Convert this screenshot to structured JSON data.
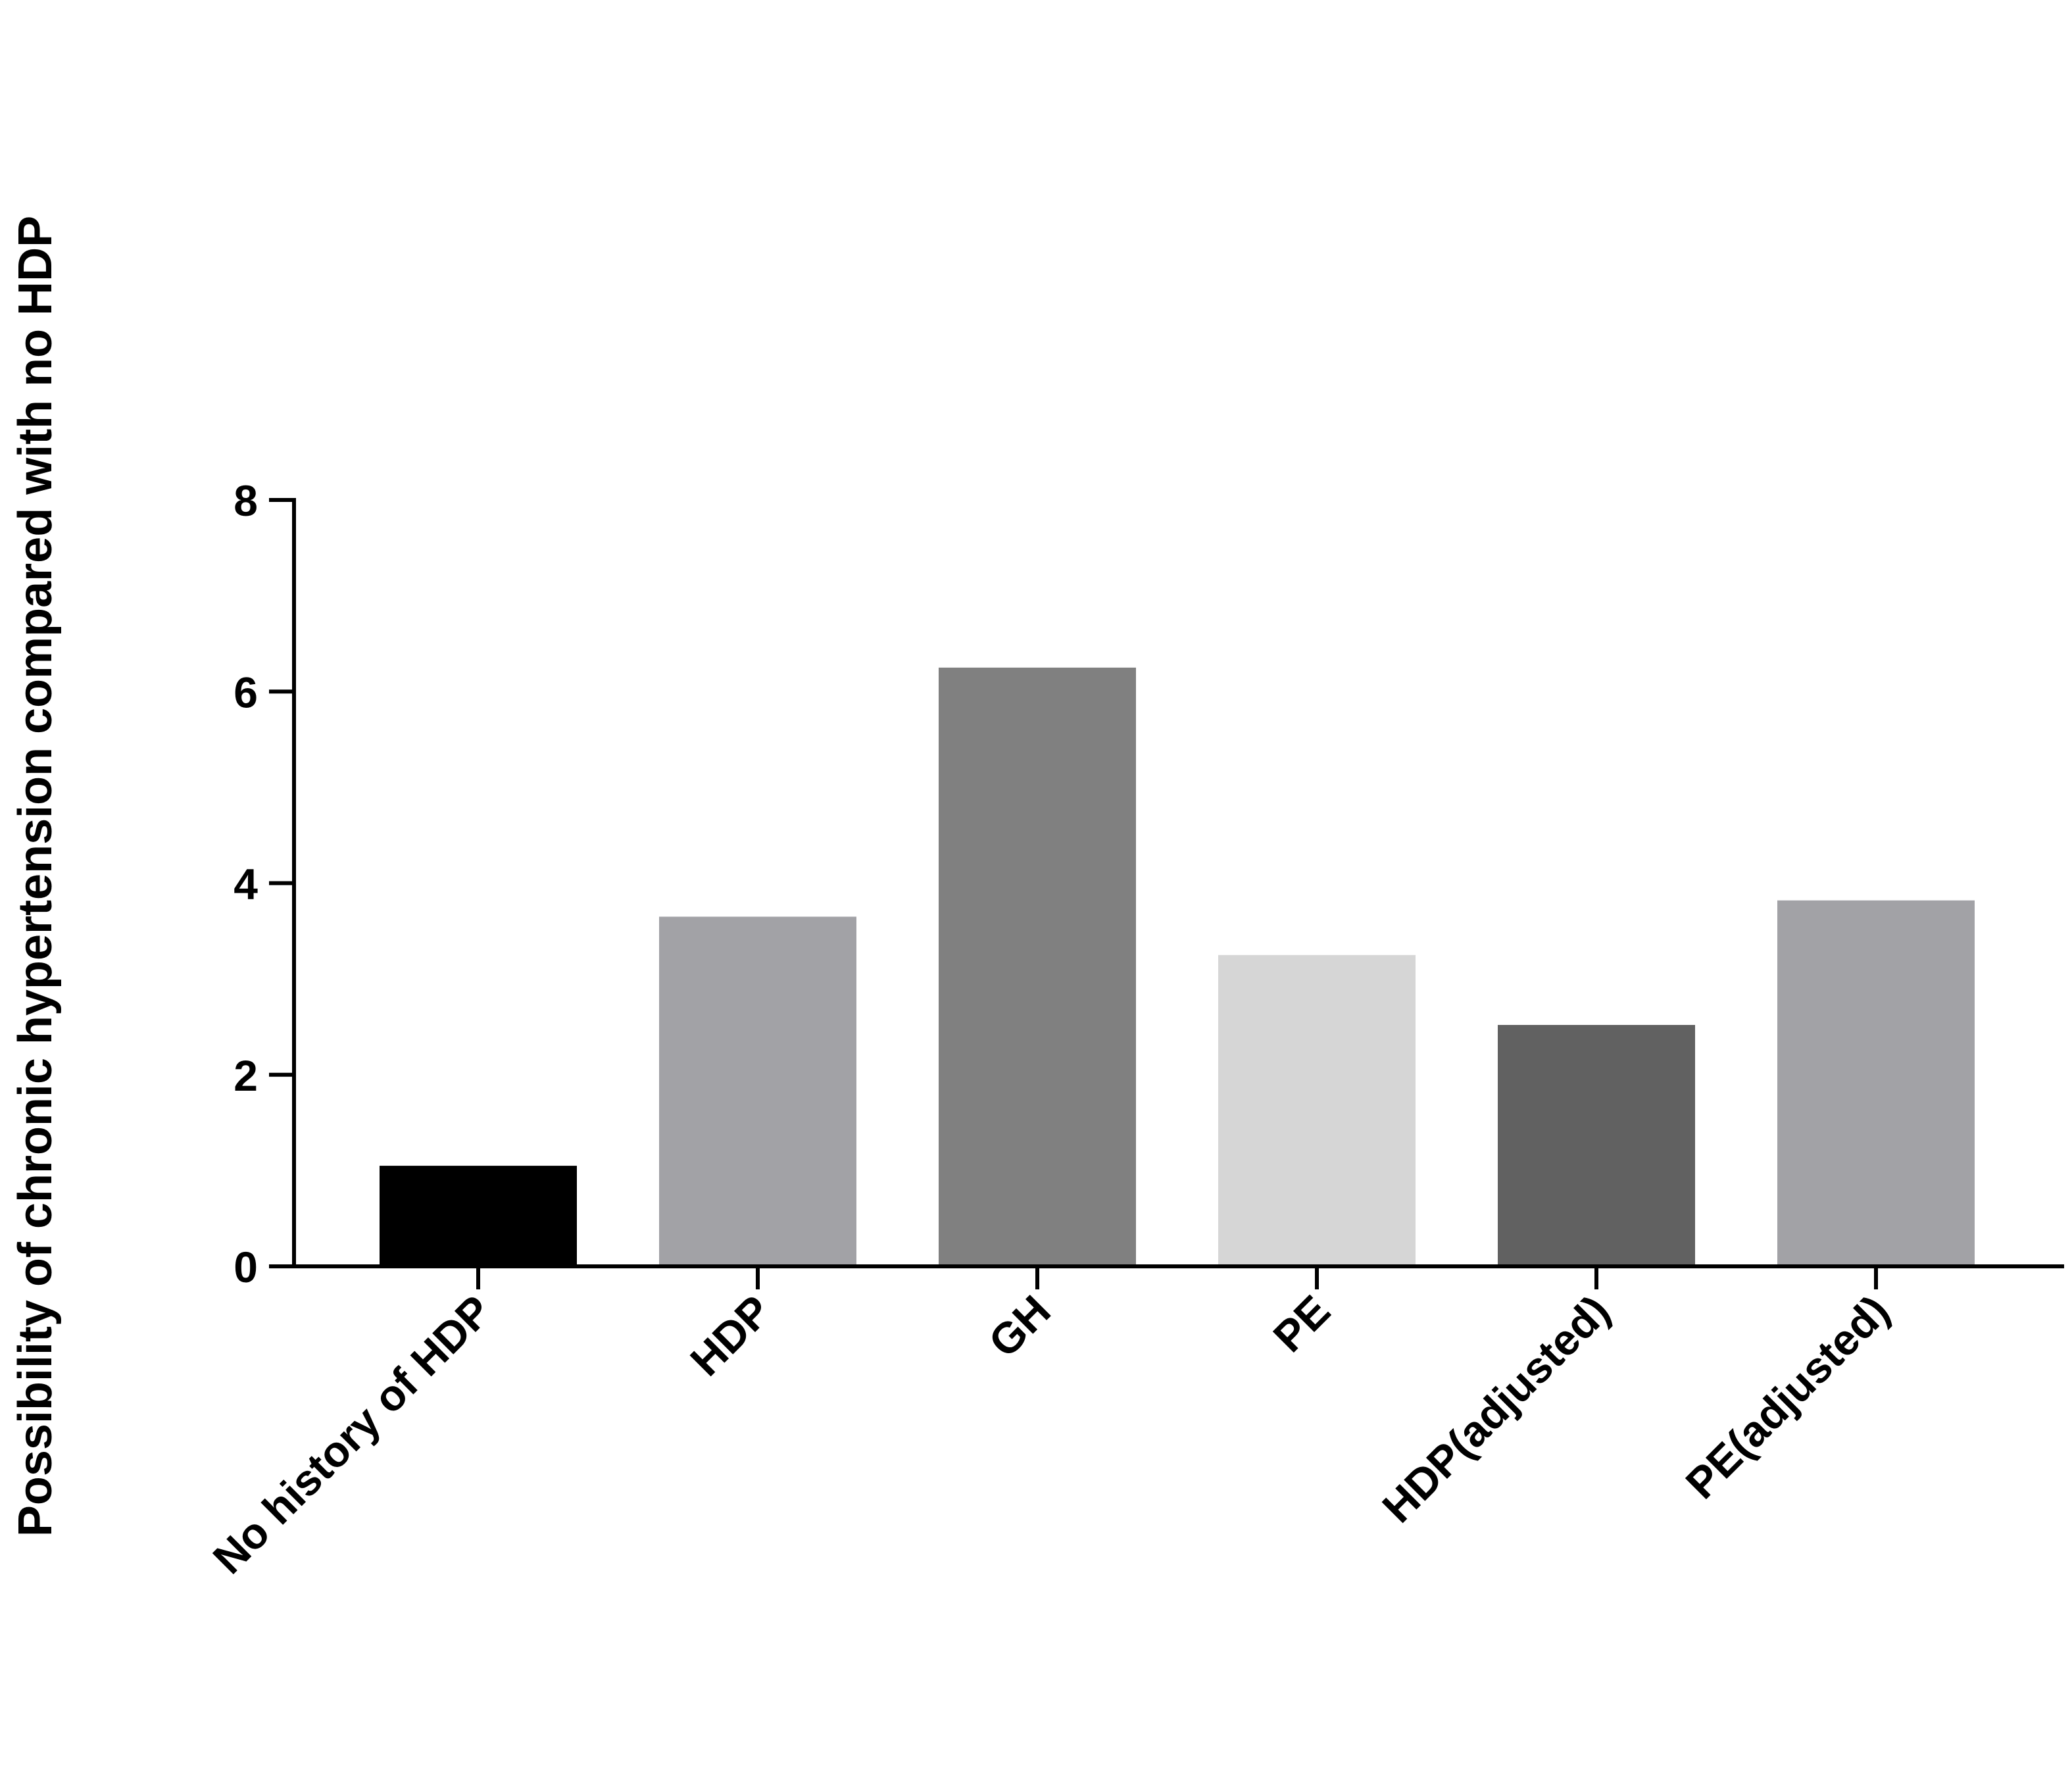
{
  "chart_data": {
    "type": "bar",
    "title": "",
    "xlabel": "",
    "ylabel": "Possibility of chronic hypertension compared with no HDP",
    "categories": [
      "No history of HDP",
      "HDP",
      "GH",
      "PE",
      "HDP(adjusted)",
      "PE(adjusted)"
    ],
    "values": [
      1.05,
      3.65,
      6.25,
      3.25,
      2.52,
      3.82
    ],
    "bar_colors": [
      "#000000",
      "#a2a2a6",
      "#808080",
      "#d6d6d6",
      "#616161",
      "#a2a2a6"
    ],
    "ylim": [
      0,
      8
    ],
    "yticks": [
      0,
      2,
      4,
      6,
      8
    ],
    "ytick_labels": [
      "0",
      "2",
      "4",
      "6",
      "8"
    ],
    "grid": false,
    "legend": "none"
  }
}
